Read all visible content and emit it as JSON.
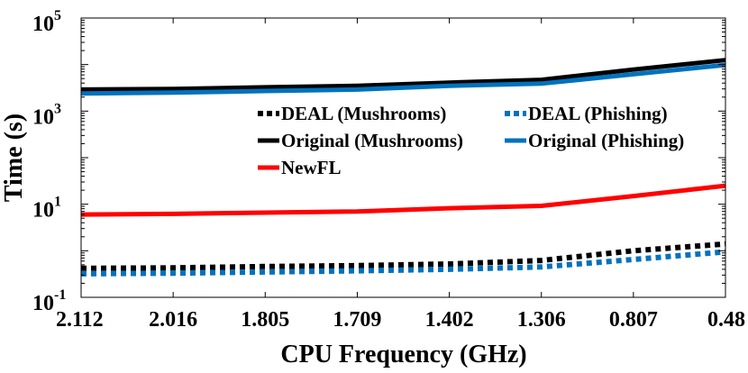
{
  "chart_data": {
    "type": "line",
    "title": "",
    "xlabel": "CPU Frequency (GHz)",
    "ylabel": "Time (s)",
    "yscale": "log",
    "ylim": [
      0.1,
      100000
    ],
    "categories": [
      "2.112",
      "2.016",
      "1.805",
      "1.709",
      "1.402",
      "1.306",
      "0.807",
      "0.48"
    ],
    "yticks": [
      {
        "base": "10",
        "exp": "-1",
        "value": 0.1
      },
      {
        "base": "10",
        "exp": "1",
        "value": 10
      },
      {
        "base": "10",
        "exp": "3",
        "value": 1000
      },
      {
        "base": "10",
        "exp": "5",
        "value": 100000
      }
    ],
    "series": [
      {
        "name": "Original (Mushrooms)",
        "color": "#000000",
        "style": "solid",
        "values": [
          2900,
          3000,
          3250,
          3500,
          4100,
          4700,
          7800,
          12500
        ]
      },
      {
        "name": "Original (Phishing)",
        "color": "#0072BD",
        "style": "solid",
        "values": [
          2400,
          2500,
          2700,
          2900,
          3500,
          3900,
          6200,
          9800
        ]
      },
      {
        "name": "NewFL",
        "color": "#FF0000",
        "style": "solid",
        "values": [
          6.0,
          6.2,
          6.6,
          7.0,
          8.2,
          9.2,
          15,
          25
        ]
      },
      {
        "name": "DEAL (Mushrooms)",
        "color": "#000000",
        "style": "dotted",
        "values": [
          0.42,
          0.43,
          0.46,
          0.48,
          0.52,
          0.62,
          1.0,
          1.4
        ]
      },
      {
        "name": "DEAL (Phishing)",
        "color": "#0072BD",
        "style": "dotted",
        "values": [
          0.32,
          0.33,
          0.35,
          0.37,
          0.4,
          0.45,
          0.65,
          0.95
        ]
      }
    ],
    "legend": [
      {
        "label": "DEAL (Mushrooms)",
        "series": 3
      },
      {
        "label": "DEAL (Phishing)",
        "series": 4
      },
      {
        "label": "Original (Mushrooms)",
        "series": 0
      },
      {
        "label": "Original (Phishing)",
        "series": 1
      },
      {
        "label": "NewFL",
        "series": 2
      }
    ],
    "legend_position": "center",
    "grid": false
  }
}
